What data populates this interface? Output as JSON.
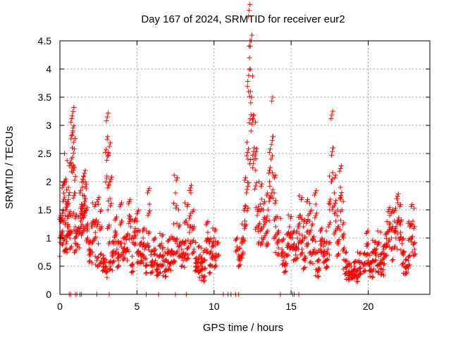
{
  "chart_data": {
    "type": "scatter",
    "title": "Day 167 of 2024, SRMTID for receiver eur2",
    "xlabel": "GPS time / hours",
    "ylabel": "SRMTID / TECUs",
    "xlim": [
      0,
      24
    ],
    "ylim": [
      0,
      4.5
    ],
    "xticks": [
      0,
      5,
      10,
      15,
      20
    ],
    "yticks": [
      0,
      0.5,
      1,
      1.5,
      2,
      2.5,
      3,
      3.5,
      4,
      4.5
    ],
    "grid": true,
    "marker": "+",
    "color": "#ff0000",
    "zero_points_x": [
      0.6,
      0.7,
      1.0,
      1.1,
      1.3,
      1.4,
      2.4,
      3.2,
      5.6,
      6.4,
      7.5,
      8.2,
      10.6,
      10.9,
      11.1,
      11.4,
      11.6,
      14.3,
      15.1,
      15.2,
      15.5
    ],
    "series": [
      {
        "name": "SRMTID",
        "points": [
          [
            0.05,
            1.3
          ],
          [
            0.1,
            0.9
          ],
          [
            0.15,
            1.1
          ],
          [
            0.2,
            1.5
          ],
          [
            0.25,
            1.8
          ],
          [
            0.3,
            2.0
          ],
          [
            0.35,
            0.8
          ],
          [
            0.4,
            0.9
          ],
          [
            0.45,
            1.5
          ],
          [
            0.5,
            1.6
          ],
          [
            0.55,
            1.9
          ],
          [
            0.6,
            1.2
          ],
          [
            0.65,
            1.0
          ],
          [
            0.7,
            1.4
          ],
          [
            0.75,
            2.3
          ],
          [
            0.8,
            2.6
          ],
          [
            0.85,
            2.95
          ],
          [
            0.9,
            2.7
          ],
          [
            0.95,
            1.8
          ],
          [
            1.0,
            1.2
          ],
          [
            1.05,
            0.9
          ],
          [
            1.1,
            1.1
          ],
          [
            1.3,
            1.1
          ],
          [
            1.35,
            1.3
          ],
          [
            1.4,
            1.6
          ],
          [
            1.45,
            1.9
          ],
          [
            1.5,
            1.4
          ],
          [
            1.55,
            1.2
          ],
          [
            1.6,
            1.7
          ],
          [
            1.65,
            2.0
          ],
          [
            1.7,
            1.5
          ],
          [
            1.8,
            1.0
          ],
          [
            1.9,
            0.8
          ],
          [
            2.0,
            0.7
          ],
          [
            2.1,
            1.2
          ],
          [
            2.2,
            1.3
          ],
          [
            2.3,
            1.1
          ],
          [
            2.4,
            0.6
          ],
          [
            2.5,
            1.6
          ],
          [
            2.6,
            1.2
          ],
          [
            2.7,
            0.6
          ],
          [
            2.8,
            0.5
          ],
          [
            2.9,
            0.6
          ],
          [
            3.0,
            0.4
          ],
          [
            3.05,
            2.1
          ],
          [
            3.1,
            2.8
          ],
          [
            3.15,
            2.5
          ],
          [
            3.2,
            1.2
          ],
          [
            3.25,
            1.7
          ],
          [
            3.3,
            0.5
          ],
          [
            3.4,
            0.7
          ],
          [
            3.5,
            0.9
          ],
          [
            3.6,
            1.1
          ],
          [
            3.7,
            0.8
          ],
          [
            3.8,
            0.6
          ],
          [
            3.9,
            0.9
          ],
          [
            4.0,
            1.3
          ],
          [
            4.1,
            0.7
          ],
          [
            4.2,
            0.9
          ],
          [
            4.3,
            1.0
          ],
          [
            4.4,
            0.8
          ],
          [
            4.5,
            1.4
          ],
          [
            4.6,
            1.2
          ],
          [
            4.7,
            0.5
          ],
          [
            4.8,
            0.9
          ],
          [
            4.9,
            1.1
          ],
          [
            5.0,
            1.3
          ],
          [
            5.1,
            0.7
          ],
          [
            5.2,
            0.9
          ],
          [
            5.3,
            0.6
          ],
          [
            5.4,
            1.0
          ],
          [
            5.5,
            0.8
          ],
          [
            5.6,
            0.5
          ],
          [
            5.7,
            0.9
          ],
          [
            5.8,
            1.6
          ],
          [
            5.9,
            0.7
          ],
          [
            6.0,
            0.5
          ],
          [
            6.1,
            0.8
          ],
          [
            6.2,
            0.6
          ],
          [
            6.3,
            0.4
          ],
          [
            6.4,
            0.5
          ],
          [
            6.5,
            0.7
          ],
          [
            6.6,
            0.9
          ],
          [
            6.7,
            0.6
          ],
          [
            6.8,
            0.4
          ],
          [
            6.9,
            0.6
          ],
          [
            7.0,
            0.8
          ],
          [
            7.1,
            0.5
          ],
          [
            7.2,
            0.7
          ],
          [
            7.3,
            1.0
          ],
          [
            7.4,
            0.6
          ],
          [
            7.5,
            1.8
          ],
          [
            7.6,
            0.9
          ],
          [
            7.7,
            1.2
          ],
          [
            7.8,
            0.7
          ],
          [
            7.9,
            0.8
          ],
          [
            8.0,
            0.6
          ],
          [
            8.1,
            0.9
          ],
          [
            8.2,
            1.3
          ],
          [
            8.3,
            0.7
          ],
          [
            8.4,
            1.1
          ],
          [
            8.5,
            1.8
          ],
          [
            8.6,
            1.2
          ],
          [
            8.7,
            0.8
          ],
          [
            8.8,
            0.5
          ],
          [
            8.9,
            0.6
          ],
          [
            9.0,
            0.4
          ],
          [
            9.1,
            0.7
          ],
          [
            9.2,
            0.5
          ],
          [
            9.3,
            0.3
          ],
          [
            9.4,
            0.6
          ],
          [
            9.5,
            0.8
          ],
          [
            9.6,
            1.1
          ],
          [
            9.7,
            0.9
          ],
          [
            9.8,
            0.5
          ],
          [
            9.9,
            0.7
          ],
          [
            10.0,
            1.0
          ],
          [
            10.1,
            0.6
          ],
          [
            10.2,
            0.9
          ],
          [
            11.5,
            0.8
          ],
          [
            11.6,
            0.7
          ],
          [
            11.7,
            0.6
          ],
          [
            11.8,
            0.9
          ],
          [
            11.9,
            1.0
          ],
          [
            12.0,
            1.3
          ],
          [
            12.1,
            1.8
          ],
          [
            12.2,
            2.4
          ],
          [
            12.25,
            3.6
          ],
          [
            12.3,
            4.2
          ],
          [
            12.35,
            4.0
          ],
          [
            12.4,
            2.9
          ],
          [
            12.5,
            3.1
          ],
          [
            12.6,
            2.6
          ],
          [
            12.7,
            2.2
          ],
          [
            12.8,
            1.4
          ],
          [
            12.9,
            1.2
          ],
          [
            13.0,
            1.6
          ],
          [
            13.1,
            1.0
          ],
          [
            13.2,
            1.5
          ],
          [
            13.3,
            1.3
          ],
          [
            13.4,
            0.9
          ],
          [
            13.5,
            1.5
          ],
          [
            13.6,
            2.0
          ],
          [
            13.7,
            2.4
          ],
          [
            13.8,
            2.8
          ],
          [
            13.9,
            1.8
          ],
          [
            14.0,
            1.2
          ],
          [
            14.1,
            0.9
          ],
          [
            14.2,
            1.1
          ],
          [
            14.4,
            0.8
          ],
          [
            14.5,
            0.6
          ],
          [
            14.6,
            0.5
          ],
          [
            14.7,
            0.7
          ],
          [
            14.8,
            0.9
          ],
          [
            14.9,
            1.2
          ],
          [
            15.0,
            1.0
          ],
          [
            15.1,
            0.8
          ],
          [
            15.2,
            0.9
          ],
          [
            15.3,
            0.7
          ],
          [
            15.4,
            1.0
          ],
          [
            15.5,
            1.2
          ],
          [
            15.6,
            1.4
          ],
          [
            15.7,
            0.8
          ],
          [
            15.8,
            1.2
          ],
          [
            15.9,
            0.6
          ],
          [
            16.0,
            0.9
          ],
          [
            16.1,
            1.4
          ],
          [
            16.2,
            1.3
          ],
          [
            16.3,
            0.7
          ],
          [
            16.4,
            1.0
          ],
          [
            16.5,
            0.8
          ],
          [
            16.6,
            1.6
          ],
          [
            16.7,
            0.4
          ],
          [
            16.8,
            0.6
          ],
          [
            16.9,
            0.8
          ],
          [
            17.0,
            1.0
          ],
          [
            17.1,
            0.7
          ],
          [
            17.2,
            0.9
          ],
          [
            17.3,
            0.5
          ],
          [
            17.4,
            0.8
          ],
          [
            17.5,
            1.5
          ],
          [
            17.6,
            2.0
          ],
          [
            17.7,
            2.6
          ],
          [
            17.8,
            1.8
          ],
          [
            17.9,
            1.3
          ],
          [
            18.0,
            0.9
          ],
          [
            18.1,
            1.2
          ],
          [
            18.2,
            1.9
          ],
          [
            18.3,
            1.5
          ],
          [
            18.4,
            1.0
          ],
          [
            18.5,
            0.6
          ],
          [
            18.6,
            0.4
          ],
          [
            18.7,
            0.3
          ],
          [
            18.8,
            0.5
          ],
          [
            18.9,
            0.4
          ],
          [
            19.0,
            0.3
          ],
          [
            19.1,
            0.5
          ],
          [
            19.2,
            0.4
          ],
          [
            19.3,
            0.3
          ],
          [
            19.4,
            0.6
          ],
          [
            19.5,
            0.4
          ],
          [
            19.7,
            0.5
          ],
          [
            19.8,
            0.7
          ],
          [
            19.9,
            0.9
          ],
          [
            20.0,
            0.6
          ],
          [
            20.1,
            0.5
          ],
          [
            20.2,
            0.4
          ],
          [
            20.3,
            0.6
          ],
          [
            20.4,
            0.8
          ],
          [
            20.5,
            0.7
          ],
          [
            20.6,
            0.5
          ],
          [
            20.7,
            0.9
          ],
          [
            20.8,
            0.6
          ],
          [
            20.9,
            0.4
          ],
          [
            21.0,
            0.8
          ],
          [
            21.1,
            0.7
          ],
          [
            21.2,
            0.9
          ],
          [
            21.3,
            1.1
          ],
          [
            21.4,
            1.4
          ],
          [
            21.5,
            0.8
          ],
          [
            21.6,
            1.2
          ],
          [
            21.7,
            1.3
          ],
          [
            21.8,
            1.0
          ],
          [
            21.9,
            1.7
          ],
          [
            22.0,
            1.3
          ],
          [
            22.1,
            1.1
          ],
          [
            22.2,
            0.9
          ],
          [
            22.3,
            0.7
          ],
          [
            22.4,
            0.5
          ],
          [
            22.5,
            0.4
          ],
          [
            22.6,
            0.6
          ],
          [
            22.7,
            1.2
          ],
          [
            22.8,
            1.0
          ],
          [
            22.9,
            1.3
          ],
          [
            23.0,
            0.8
          ]
        ]
      }
    ]
  }
}
